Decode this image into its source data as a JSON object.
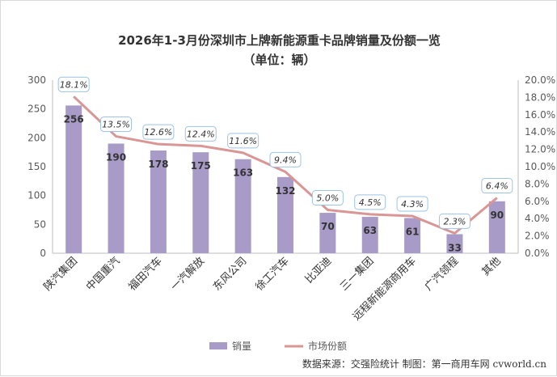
{
  "title_line1": "2026年1-3月份深圳市上牌新能源重卡品牌销量及份额一览",
  "title_line2": "（单位：辆）",
  "source": "数据来源：交强险统计 制图：第一商用车网 cvworld.cn",
  "chart_data": {
    "type": "bar",
    "categories": [
      "陕汽集团",
      "中国重汽",
      "福田汽车",
      "一汽解放",
      "东风公司",
      "徐工汽车",
      "比亚迪",
      "三一集团",
      "远程新能源商用车",
      "广汽领程",
      "其他"
    ],
    "series": [
      {
        "name": "销量",
        "type": "bar",
        "axis": "left",
        "values": [
          256,
          190,
          178,
          175,
          163,
          132,
          70,
          63,
          61,
          33,
          90
        ],
        "color": "#a99bc7"
      },
      {
        "name": "市场份额",
        "type": "line",
        "axis": "right",
        "values": [
          18.1,
          13.5,
          12.6,
          12.4,
          11.6,
          9.4,
          5.0,
          4.5,
          4.3,
          2.3,
          6.4
        ],
        "labels": [
          "18.1%",
          "13.5%",
          "12.6%",
          "12.4%",
          "11.6%",
          "9.4%",
          "5.0%",
          "4.5%",
          "4.3%",
          "2.3%",
          "6.4%"
        ],
        "color": "#d99694"
      }
    ],
    "y_left": {
      "min": 0,
      "max": 300,
      "ticks": [
        "0",
        "50",
        "100",
        "150",
        "200",
        "250",
        "300"
      ]
    },
    "y_right": {
      "min": 0,
      "max": 20,
      "ticks": [
        "0.0%",
        "2.0%",
        "4.0%",
        "6.0%",
        "8.0%",
        "10.0%",
        "12.0%",
        "14.0%",
        "16.0%",
        "18.0%",
        "20.0%"
      ]
    },
    "grid": false,
    "legend": "bottom"
  }
}
